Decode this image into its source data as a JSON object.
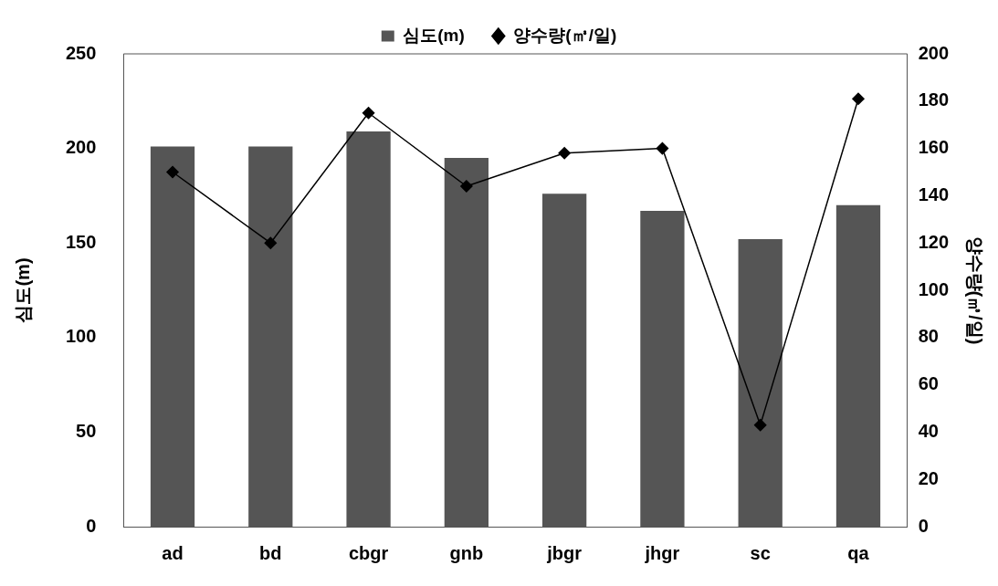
{
  "chart_data": {
    "type": "bar",
    "categories": [
      "ad",
      "bd",
      "cbgr",
      "gnb",
      "jbgr",
      "jhgr",
      "sc",
      "qa"
    ],
    "series": [
      {
        "name": "심도(m)",
        "color": "#555555",
        "values": [
          201,
          201,
          209,
          195,
          176,
          167,
          152,
          170
        ]
      },
      {
        "name": "양수량(㎥/일)",
        "type": "line",
        "axis": "y2",
        "color": "#000000",
        "values": [
          150,
          120,
          175,
          144,
          158,
          160,
          43,
          181
        ]
      }
    ],
    "ylabel": "심도(m)",
    "y2label": "양수량(㎥/일)",
    "ylim": [
      0,
      250
    ],
    "yticks": [
      0,
      50,
      100,
      150,
      200,
      250
    ],
    "y2lim": [
      0,
      200
    ],
    "y2ticks": [
      0,
      20,
      40,
      60,
      80,
      100,
      120,
      140,
      160,
      180,
      200
    ],
    "grid": false,
    "legend": "top",
    "marker": "diamond",
    "line_style": "solid"
  }
}
